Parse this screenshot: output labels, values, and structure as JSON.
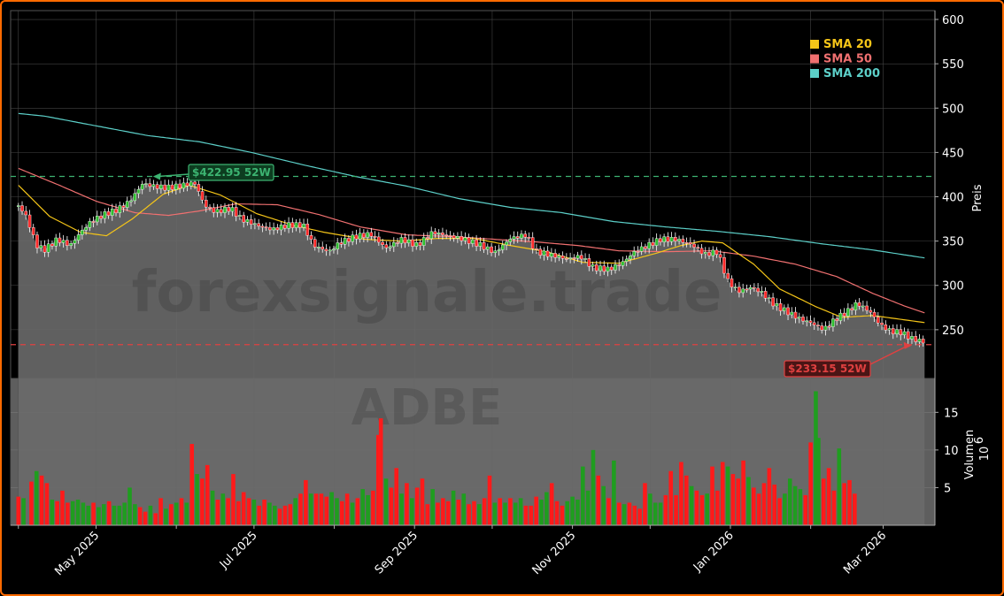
{
  "chart_data": {
    "type": "candlestick",
    "symbol_watermark": "ADBE",
    "site_watermark": "forexsignale.trade",
    "x_ticks": [
      "May 2025",
      "Jul 2025",
      "Sep 2025",
      "Nov 2025",
      "Jan 2026",
      "Mar 2026"
    ],
    "price_axis": {
      "label": "Preis",
      "ylim": [
        195,
        610
      ],
      "ticks": [
        250,
        300,
        350,
        400,
        450,
        500,
        550,
        600
      ]
    },
    "volume_axis": {
      "label": "Volumen",
      "multiplier": "10",
      "exponent": "6",
      "ylim": [
        0,
        19.5
      ],
      "ticks": [
        5,
        10,
        15
      ]
    },
    "legend": [
      {
        "name": "SMA 20",
        "color": "#f5c518"
      },
      {
        "name": "SMA 50",
        "color": "#f07070"
      },
      {
        "name": "SMA 200",
        "color": "#5ccfc8"
      }
    ],
    "annotations": {
      "high": {
        "label": "$422.95 52W",
        "value": 422.95,
        "color": "#3cb371"
      },
      "low": {
        "label": "$233.15 52W",
        "value": 233.15,
        "color": "#e04040"
      }
    },
    "x_range_days": [
      -3,
      354
    ],
    "month_starts_days": [
      0,
      30,
      61,
      91,
      122,
      153,
      183,
      214,
      244,
      275,
      306,
      334
    ],
    "close_series": [
      {
        "day": 0,
        "close": 390
      },
      {
        "day": 3,
        "close": 378
      },
      {
        "day": 7,
        "close": 345
      },
      {
        "day": 10,
        "close": 340
      },
      {
        "day": 15,
        "close": 352
      },
      {
        "day": 20,
        "close": 345
      },
      {
        "day": 24,
        "close": 360
      },
      {
        "day": 28,
        "close": 372
      },
      {
        "day": 33,
        "close": 380
      },
      {
        "day": 38,
        "close": 385
      },
      {
        "day": 43,
        "close": 395
      },
      {
        "day": 48,
        "close": 415
      },
      {
        "day": 52,
        "close": 412
      },
      {
        "day": 57,
        "close": 410
      },
      {
        "day": 62,
        "close": 412
      },
      {
        "day": 68,
        "close": 416
      },
      {
        "day": 72,
        "close": 390
      },
      {
        "day": 76,
        "close": 383
      },
      {
        "day": 82,
        "close": 387
      },
      {
        "day": 86,
        "close": 375
      },
      {
        "day": 92,
        "close": 368
      },
      {
        "day": 98,
        "close": 363
      },
      {
        "day": 104,
        "close": 368
      },
      {
        "day": 110,
        "close": 368
      },
      {
        "day": 114,
        "close": 345
      },
      {
        "day": 120,
        "close": 338
      },
      {
        "day": 124,
        "close": 348
      },
      {
        "day": 130,
        "close": 355
      },
      {
        "day": 136,
        "close": 358
      },
      {
        "day": 142,
        "close": 342
      },
      {
        "day": 148,
        "close": 352
      },
      {
        "day": 154,
        "close": 345
      },
      {
        "day": 160,
        "close": 360
      },
      {
        "day": 166,
        "close": 356
      },
      {
        "day": 172,
        "close": 352
      },
      {
        "day": 178,
        "close": 346
      },
      {
        "day": 184,
        "close": 337
      },
      {
        "day": 190,
        "close": 353
      },
      {
        "day": 196,
        "close": 357
      },
      {
        "day": 200,
        "close": 338
      },
      {
        "day": 206,
        "close": 334
      },
      {
        "day": 212,
        "close": 330
      },
      {
        "day": 217,
        "close": 333
      },
      {
        "day": 222,
        "close": 320
      },
      {
        "day": 228,
        "close": 318
      },
      {
        "day": 233,
        "close": 325
      },
      {
        "day": 238,
        "close": 338
      },
      {
        "day": 243,
        "close": 345
      },
      {
        "day": 248,
        "close": 352
      },
      {
        "day": 254,
        "close": 352
      },
      {
        "day": 260,
        "close": 346
      },
      {
        "day": 265,
        "close": 335
      },
      {
        "day": 270,
        "close": 338
      },
      {
        "day": 274,
        "close": 305
      },
      {
        "day": 278,
        "close": 293
      },
      {
        "day": 283,
        "close": 298
      },
      {
        "day": 287,
        "close": 292
      },
      {
        "day": 292,
        "close": 278
      },
      {
        "day": 297,
        "close": 270
      },
      {
        "day": 302,
        "close": 262
      },
      {
        "day": 306,
        "close": 258
      },
      {
        "day": 311,
        "close": 250
      },
      {
        "day": 316,
        "close": 263
      },
      {
        "day": 320,
        "close": 270
      },
      {
        "day": 324,
        "close": 280
      },
      {
        "day": 329,
        "close": 270
      },
      {
        "day": 333,
        "close": 255
      },
      {
        "day": 337,
        "close": 248
      },
      {
        "day": 341,
        "close": 247
      },
      {
        "day": 345,
        "close": 240
      },
      {
        "day": 350,
        "close": 236
      }
    ],
    "sma20": [
      {
        "day": 0,
        "close": 413
      },
      {
        "day": 12,
        "close": 378
      },
      {
        "day": 24,
        "close": 360
      },
      {
        "day": 34,
        "close": 356
      },
      {
        "day": 44,
        "close": 375
      },
      {
        "day": 56,
        "close": 403
      },
      {
        "day": 66,
        "close": 413
      },
      {
        "day": 78,
        "close": 402
      },
      {
        "day": 92,
        "close": 381
      },
      {
        "day": 106,
        "close": 368
      },
      {
        "day": 118,
        "close": 360
      },
      {
        "day": 134,
        "close": 352
      },
      {
        "day": 148,
        "close": 350
      },
      {
        "day": 162,
        "close": 353
      },
      {
        "day": 176,
        "close": 353
      },
      {
        "day": 190,
        "close": 345
      },
      {
        "day": 204,
        "close": 338
      },
      {
        "day": 218,
        "close": 326
      },
      {
        "day": 232,
        "close": 325
      },
      {
        "day": 246,
        "close": 336
      },
      {
        "day": 256,
        "close": 345
      },
      {
        "day": 264,
        "close": 350
      },
      {
        "day": 272,
        "close": 348
      },
      {
        "day": 284,
        "close": 324
      },
      {
        "day": 294,
        "close": 296
      },
      {
        "day": 308,
        "close": 276
      },
      {
        "day": 318,
        "close": 264
      },
      {
        "day": 330,
        "close": 266
      },
      {
        "day": 340,
        "close": 262
      },
      {
        "day": 350,
        "close": 258
      }
    ],
    "sma50": [
      {
        "day": 0,
        "close": 432
      },
      {
        "day": 15,
        "close": 414
      },
      {
        "day": 30,
        "close": 395
      },
      {
        "day": 45,
        "close": 382
      },
      {
        "day": 58,
        "close": 379
      },
      {
        "day": 70,
        "close": 384
      },
      {
        "day": 84,
        "close": 392
      },
      {
        "day": 100,
        "close": 391
      },
      {
        "day": 116,
        "close": 380
      },
      {
        "day": 132,
        "close": 366
      },
      {
        "day": 150,
        "close": 357
      },
      {
        "day": 168,
        "close": 355
      },
      {
        "day": 184,
        "close": 352
      },
      {
        "day": 200,
        "close": 349
      },
      {
        "day": 216,
        "close": 345
      },
      {
        "day": 232,
        "close": 339
      },
      {
        "day": 250,
        "close": 338
      },
      {
        "day": 268,
        "close": 339
      },
      {
        "day": 284,
        "close": 333
      },
      {
        "day": 300,
        "close": 324
      },
      {
        "day": 316,
        "close": 310
      },
      {
        "day": 330,
        "close": 291
      },
      {
        "day": 342,
        "close": 277
      },
      {
        "day": 350,
        "close": 269
      }
    ],
    "sma200": [
      {
        "day": 0,
        "close": 494
      },
      {
        "day": 10,
        "close": 491
      },
      {
        "day": 30,
        "close": 480
      },
      {
        "day": 50,
        "close": 469
      },
      {
        "day": 70,
        "close": 462
      },
      {
        "day": 90,
        "close": 450
      },
      {
        "day": 110,
        "close": 436
      },
      {
        "day": 130,
        "close": 423
      },
      {
        "day": 150,
        "close": 412
      },
      {
        "day": 170,
        "close": 398
      },
      {
        "day": 190,
        "close": 388
      },
      {
        "day": 210,
        "close": 382
      },
      {
        "day": 230,
        "close": 372
      },
      {
        "day": 250,
        "close": 366
      },
      {
        "day": 270,
        "close": 361
      },
      {
        "day": 290,
        "close": 355
      },
      {
        "day": 310,
        "close": 347
      },
      {
        "day": 330,
        "close": 340
      },
      {
        "day": 350,
        "close": 331
      }
    ],
    "volume_bars": [
      [
        0,
        3.8,
        "down"
      ],
      [
        2,
        3.6,
        "up"
      ],
      [
        5,
        5.8,
        "down"
      ],
      [
        7,
        7.2,
        "up"
      ],
      [
        9,
        6.6,
        "down"
      ],
      [
        11,
        5.6,
        "down"
      ],
      [
        13,
        3.4,
        "up"
      ],
      [
        15,
        3.2,
        "down"
      ],
      [
        17,
        4.6,
        "down"
      ],
      [
        19,
        3.0,
        "down"
      ],
      [
        21,
        3.2,
        "up"
      ],
      [
        23,
        3.4,
        "up"
      ],
      [
        25,
        3.0,
        "up"
      ],
      [
        27,
        2.6,
        "up"
      ],
      [
        29,
        3.0,
        "down"
      ],
      [
        31,
        2.4,
        "up"
      ],
      [
        33,
        2.8,
        "up"
      ],
      [
        35,
        3.2,
        "down"
      ],
      [
        37,
        2.6,
        "up"
      ],
      [
        39,
        2.6,
        "up"
      ],
      [
        41,
        3.0,
        "up"
      ],
      [
        43,
        5.0,
        "up"
      ],
      [
        45,
        2.8,
        "up"
      ],
      [
        47,
        2.4,
        "down"
      ],
      [
        49,
        1.8,
        "down"
      ],
      [
        51,
        2.6,
        "up"
      ],
      [
        53,
        1.6,
        "down"
      ],
      [
        55,
        3.6,
        "down"
      ],
      [
        57,
        2.2,
        "up"
      ],
      [
        59,
        2.8,
        "down"
      ],
      [
        61,
        3.0,
        "up"
      ],
      [
        63,
        3.6,
        "down"
      ],
      [
        65,
        3.0,
        "up"
      ],
      [
        67,
        10.8,
        "down"
      ],
      [
        69,
        6.8,
        "up"
      ],
      [
        71,
        6.2,
        "down"
      ],
      [
        73,
        8.0,
        "down"
      ],
      [
        75,
        4.6,
        "up"
      ],
      [
        77,
        3.4,
        "down"
      ],
      [
        79,
        4.2,
        "up"
      ],
      [
        81,
        3.6,
        "down"
      ],
      [
        83,
        6.8,
        "down"
      ],
      [
        85,
        3.2,
        "down"
      ],
      [
        87,
        4.4,
        "down"
      ],
      [
        89,
        3.6,
        "down"
      ],
      [
        91,
        3.4,
        "up"
      ],
      [
        93,
        2.6,
        "down"
      ],
      [
        95,
        3.4,
        "down"
      ],
      [
        97,
        3.0,
        "up"
      ],
      [
        99,
        2.6,
        "up"
      ],
      [
        101,
        2.2,
        "down"
      ],
      [
        103,
        2.6,
        "down"
      ],
      [
        105,
        2.8,
        "down"
      ],
      [
        107,
        3.6,
        "up"
      ],
      [
        109,
        4.2,
        "down"
      ],
      [
        111,
        6.0,
        "down"
      ],
      [
        113,
        4.2,
        "up"
      ],
      [
        115,
        4.2,
        "down"
      ],
      [
        117,
        4.2,
        "down"
      ],
      [
        119,
        3.8,
        "down"
      ],
      [
        121,
        4.4,
        "up"
      ],
      [
        123,
        3.6,
        "up"
      ],
      [
        125,
        3.2,
        "down"
      ],
      [
        127,
        4.2,
        "down"
      ],
      [
        129,
        3.0,
        "up"
      ],
      [
        131,
        3.6,
        "down"
      ],
      [
        133,
        4.8,
        "up"
      ],
      [
        135,
        4.0,
        "up"
      ],
      [
        137,
        4.6,
        "down"
      ],
      [
        139,
        12.0,
        "down"
      ],
      [
        140,
        14.2,
        "down"
      ],
      [
        142,
        6.2,
        "up"
      ],
      [
        144,
        5.0,
        "down"
      ],
      [
        146,
        7.6,
        "down"
      ],
      [
        148,
        4.2,
        "up"
      ],
      [
        150,
        5.6,
        "down"
      ],
      [
        152,
        3.6,
        "up"
      ],
      [
        154,
        5.0,
        "down"
      ],
      [
        156,
        6.2,
        "down"
      ],
      [
        158,
        2.8,
        "down"
      ],
      [
        160,
        4.8,
        "up"
      ],
      [
        162,
        3.0,
        "down"
      ],
      [
        164,
        3.6,
        "down"
      ],
      [
        166,
        3.2,
        "down"
      ],
      [
        168,
        4.6,
        "up"
      ],
      [
        170,
        3.4,
        "down"
      ],
      [
        172,
        4.2,
        "up"
      ],
      [
        174,
        2.8,
        "down"
      ],
      [
        176,
        3.2,
        "down"
      ],
      [
        178,
        2.8,
        "up"
      ],
      [
        180,
        3.6,
        "down"
      ],
      [
        182,
        6.6,
        "down"
      ],
      [
        184,
        3.0,
        "up"
      ],
      [
        186,
        3.6,
        "down"
      ],
      [
        188,
        3.0,
        "up"
      ],
      [
        190,
        3.6,
        "down"
      ],
      [
        192,
        3.0,
        "up"
      ],
      [
        194,
        3.6,
        "up"
      ],
      [
        196,
        2.6,
        "down"
      ],
      [
        198,
        2.6,
        "down"
      ],
      [
        200,
        3.8,
        "down"
      ],
      [
        202,
        3.4,
        "up"
      ],
      [
        204,
        4.4,
        "up"
      ],
      [
        206,
        5.6,
        "down"
      ],
      [
        208,
        3.2,
        "down"
      ],
      [
        210,
        2.6,
        "down"
      ],
      [
        212,
        3.2,
        "up"
      ],
      [
        214,
        3.8,
        "up"
      ],
      [
        216,
        3.4,
        "up"
      ],
      [
        218,
        7.8,
        "up"
      ],
      [
        220,
        4.6,
        "up"
      ],
      [
        222,
        10.0,
        "up"
      ],
      [
        224,
        6.6,
        "down"
      ],
      [
        226,
        5.2,
        "up"
      ],
      [
        228,
        3.6,
        "down"
      ],
      [
        230,
        8.6,
        "up"
      ],
      [
        232,
        3.0,
        "down"
      ],
      [
        234,
        2.8,
        "up"
      ],
      [
        236,
        3.0,
        "down"
      ],
      [
        238,
        2.6,
        "down"
      ],
      [
        240,
        2.2,
        "down"
      ],
      [
        242,
        5.6,
        "down"
      ],
      [
        244,
        4.2,
        "up"
      ],
      [
        246,
        3.0,
        "up"
      ],
      [
        248,
        3.0,
        "up"
      ],
      [
        250,
        4.0,
        "down"
      ],
      [
        252,
        7.2,
        "down"
      ],
      [
        254,
        4.0,
        "down"
      ],
      [
        256,
        8.4,
        "down"
      ],
      [
        258,
        6.6,
        "down"
      ],
      [
        260,
        5.2,
        "up"
      ],
      [
        262,
        4.6,
        "down"
      ],
      [
        264,
        4.0,
        "down"
      ],
      [
        266,
        4.2,
        "up"
      ],
      [
        268,
        7.8,
        "down"
      ],
      [
        270,
        4.6,
        "down"
      ],
      [
        272,
        8.4,
        "down"
      ],
      [
        274,
        7.8,
        "up"
      ],
      [
        276,
        6.8,
        "down"
      ],
      [
        278,
        6.2,
        "down"
      ],
      [
        280,
        8.6,
        "down"
      ],
      [
        282,
        6.4,
        "up"
      ],
      [
        284,
        5.0,
        "down"
      ],
      [
        286,
        4.2,
        "down"
      ],
      [
        288,
        5.6,
        "down"
      ],
      [
        290,
        7.6,
        "down"
      ],
      [
        292,
        5.4,
        "down"
      ],
      [
        294,
        3.6,
        "down"
      ],
      [
        296,
        4.2,
        "up"
      ],
      [
        298,
        6.2,
        "up"
      ],
      [
        300,
        5.2,
        "up"
      ],
      [
        302,
        4.8,
        "up"
      ],
      [
        304,
        4.0,
        "down"
      ],
      [
        306,
        11.0,
        "down"
      ],
      [
        308,
        17.8,
        "up"
      ],
      [
        309,
        11.6,
        "up"
      ],
      [
        311,
        6.2,
        "down"
      ],
      [
        313,
        7.6,
        "down"
      ],
      [
        315,
        4.6,
        "down"
      ],
      [
        317,
        10.2,
        "up"
      ],
      [
        319,
        5.6,
        "down"
      ],
      [
        321,
        6.0,
        "down"
      ],
      [
        323,
        4.2,
        "down"
      ]
    ]
  }
}
